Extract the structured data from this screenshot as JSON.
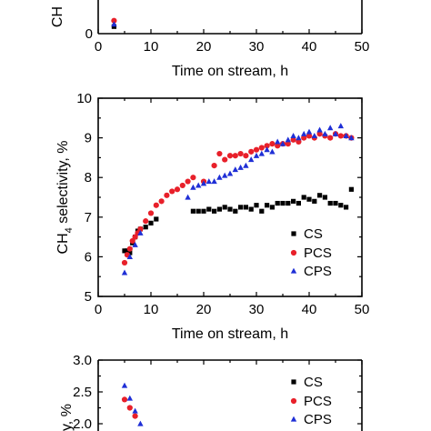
{
  "chart_data": [
    {
      "type": "scatter",
      "panel": "top (cropped)",
      "xlabel": "Time on stream, h",
      "ylabel": "CH",
      "xlim": [
        0,
        50
      ],
      "x_ticks": [
        "0",
        "10",
        "20",
        "30",
        "40",
        "50"
      ],
      "y_ticks": [
        "0"
      ],
      "series": [
        {
          "name": "CS",
          "color": "#000000",
          "marker": "square",
          "x": [
            3
          ],
          "y": [
            0.3
          ]
        },
        {
          "name": "PCS",
          "color": "#e8202a",
          "marker": "circle",
          "x": [
            3
          ],
          "y": [
            0.55
          ]
        },
        {
          "name": "CPS",
          "color": "#1f2fd6",
          "marker": "triangle",
          "x": [
            3
          ],
          "y": [
            0.4
          ]
        }
      ]
    },
    {
      "type": "scatter",
      "panel": "middle",
      "xlabel": "Time on stream, h",
      "ylabel": "CH4 selectivity, %",
      "ylabel_parts": {
        "pre": "CH",
        "sub": "4",
        "post": " selectivity, %"
      },
      "xlim": [
        0,
        50
      ],
      "ylim": [
        5,
        10
      ],
      "x_ticks": [
        "0",
        "10",
        "20",
        "30",
        "40",
        "50"
      ],
      "y_ticks": [
        "5",
        "6",
        "7",
        "8",
        "9",
        "10"
      ],
      "legend": "bottom-right",
      "grid": false,
      "series": [
        {
          "name": "CS",
          "color": "#000000",
          "marker": "square",
          "x": [
            5,
            5.5,
            6,
            6.5,
            7,
            7.5,
            8,
            9,
            10,
            11,
            18,
            19,
            20,
            21,
            22,
            23,
            24,
            25,
            26,
            27,
            28,
            29,
            30,
            31,
            32,
            33,
            34,
            35,
            36,
            37,
            38,
            39,
            40,
            41,
            42,
            43,
            44,
            45,
            46,
            47,
            48
          ],
          "y": [
            6.15,
            6.15,
            6.1,
            6.35,
            6.5,
            6.65,
            6.7,
            6.75,
            6.85,
            6.95,
            7.15,
            7.15,
            7.15,
            7.2,
            7.15,
            7.2,
            7.25,
            7.2,
            7.15,
            7.25,
            7.25,
            7.2,
            7.3,
            7.15,
            7.3,
            7.25,
            7.35,
            7.35,
            7.35,
            7.4,
            7.35,
            7.5,
            7.45,
            7.4,
            7.55,
            7.5,
            7.35,
            7.35,
            7.3,
            7.25,
            7.7
          ]
        },
        {
          "name": "PCS",
          "color": "#e8202a",
          "marker": "circle",
          "x": [
            5,
            5.5,
            6,
            6.5,
            7,
            7.5,
            8,
            9,
            10,
            11,
            12,
            13,
            14,
            15,
            16,
            17,
            18,
            20,
            22,
            23,
            24,
            25,
            26,
            27,
            28,
            29,
            30,
            31,
            32,
            33,
            34,
            35,
            36,
            37,
            38,
            39,
            40,
            41,
            42,
            43,
            44,
            45,
            46,
            47,
            48
          ],
          "y": [
            5.85,
            6.05,
            6.2,
            6.4,
            6.5,
            6.6,
            6.7,
            6.9,
            7.1,
            7.3,
            7.4,
            7.55,
            7.65,
            7.7,
            7.8,
            7.9,
            8.0,
            7.9,
            8.3,
            8.6,
            8.45,
            8.55,
            8.55,
            8.6,
            8.55,
            8.65,
            8.7,
            8.75,
            8.8,
            8.85,
            8.8,
            8.85,
            8.85,
            8.95,
            8.9,
            9.0,
            9.05,
            9.0,
            9.1,
            9.05,
            9.0,
            9.1,
            9.05,
            9.05,
            9.0
          ]
        },
        {
          "name": "CPS",
          "color": "#1f2fd6",
          "marker": "triangle",
          "x": [
            5,
            6,
            7,
            8,
            17,
            18,
            19,
            20,
            21,
            22,
            23,
            24,
            25,
            26,
            27,
            28,
            29,
            30,
            31,
            32,
            33,
            34,
            35,
            36,
            37,
            38,
            39,
            40,
            41,
            42,
            43,
            44,
            45,
            46,
            47,
            48
          ],
          "y": [
            5.6,
            6.0,
            6.3,
            6.6,
            7.5,
            7.75,
            7.8,
            7.85,
            7.9,
            7.9,
            8.0,
            8.05,
            8.1,
            8.2,
            8.25,
            8.3,
            8.45,
            8.55,
            8.6,
            8.7,
            8.65,
            8.9,
            8.85,
            8.95,
            9.05,
            9.0,
            9.1,
            9.15,
            9.05,
            9.2,
            9.1,
            9.25,
            9.1,
            9.3,
            9.05,
            9.0
          ]
        }
      ]
    },
    {
      "type": "scatter",
      "panel": "bottom (cropped)",
      "ylabel_visible": "y, %",
      "y_ticks": [
        "2.0",
        "2.5",
        "3.0"
      ],
      "legend": "top-right",
      "series": [
        {
          "name": "CS",
          "color": "#000000",
          "marker": "square",
          "x": [],
          "y": []
        },
        {
          "name": "PCS",
          "color": "#e8202a",
          "marker": "circle",
          "x": [
            5,
            6,
            7
          ],
          "y": [
            2.38,
            2.25,
            2.12
          ]
        },
        {
          "name": "CPS",
          "color": "#1f2fd6",
          "marker": "triangle",
          "x": [
            5,
            6,
            7,
            8
          ],
          "y": [
            2.6,
            2.4,
            2.2,
            2.0
          ]
        }
      ]
    }
  ]
}
